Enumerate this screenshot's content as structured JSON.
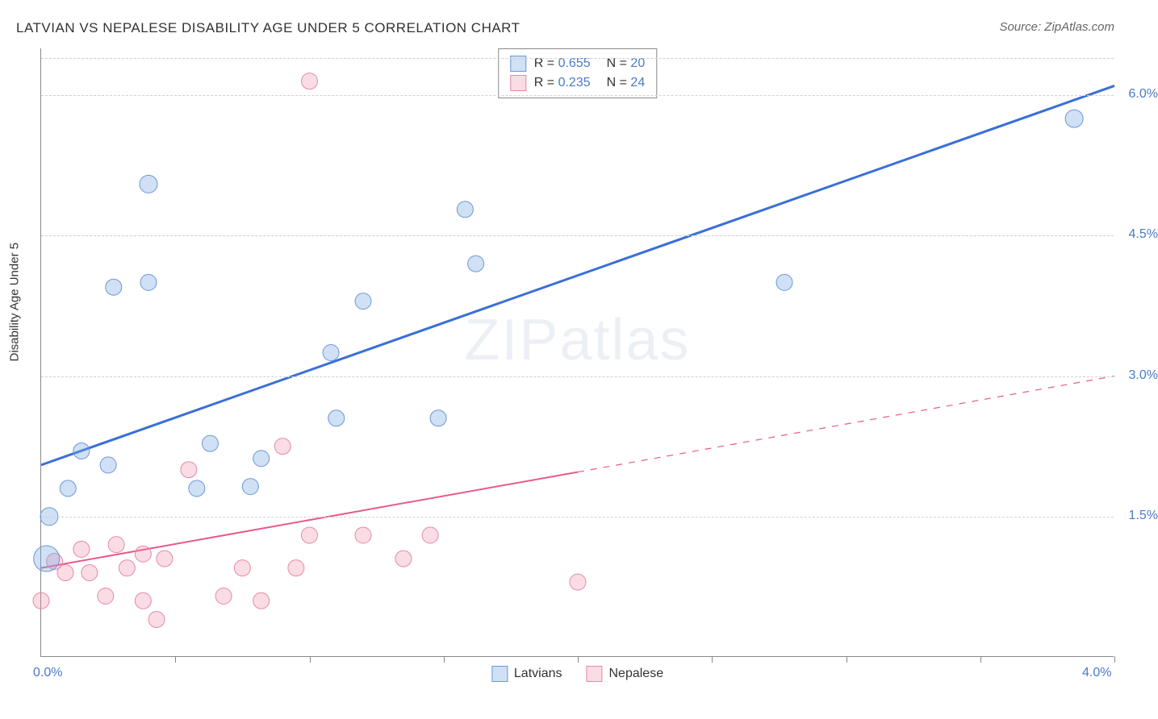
{
  "title": "LATVIAN VS NEPALESE DISABILITY AGE UNDER 5 CORRELATION CHART",
  "source": "Source: ZipAtlas.com",
  "y_axis_label": "Disability Age Under 5",
  "watermark": {
    "zip": "ZIP",
    "atlas": "atlas"
  },
  "chart": {
    "type": "scatter",
    "xlim": [
      0,
      4.0
    ],
    "ylim": [
      0,
      6.5
    ],
    "x_ticks": [
      0.5,
      1.0,
      1.5,
      2.0,
      2.5,
      3.0,
      3.5,
      4.0
    ],
    "x_tick_labels": [
      {
        "value": 0.0,
        "label": "0.0%"
      },
      {
        "value": 4.0,
        "label": "4.0%"
      }
    ],
    "y_gridlines": [
      1.5,
      3.0,
      4.5,
      6.0
    ],
    "y_tick_labels": [
      {
        "value": 1.5,
        "label": "1.5%"
      },
      {
        "value": 3.0,
        "label": "3.0%"
      },
      {
        "value": 4.5,
        "label": "4.5%"
      },
      {
        "value": 6.0,
        "label": "6.0%"
      }
    ],
    "top_gridline": 6.4,
    "background_color": "#ffffff",
    "grid_color": "#d0d0d0",
    "axis_color": "#888888",
    "text_color": "#333333",
    "tick_label_color": "#4a7ac7"
  },
  "series": {
    "latvians": {
      "label": "Latvians",
      "R": "0.655",
      "N": "20",
      "fill": "rgba(120,165,225,0.35)",
      "stroke": "#6b98d6",
      "line_color": "#3a6fd8",
      "line_width": 3,
      "marker_radius": 10,
      "trend": {
        "x1": 0.0,
        "y1": 2.05,
        "x2": 4.0,
        "y2": 6.1,
        "solid_end_x": 4.0
      },
      "points": [
        {
          "x": 0.02,
          "y": 1.05,
          "r": 16
        },
        {
          "x": 0.03,
          "y": 1.5,
          "r": 11
        },
        {
          "x": 0.1,
          "y": 1.8,
          "r": 10
        },
        {
          "x": 0.15,
          "y": 2.2,
          "r": 10
        },
        {
          "x": 0.25,
          "y": 2.05,
          "r": 10
        },
        {
          "x": 0.27,
          "y": 3.95,
          "r": 10
        },
        {
          "x": 0.4,
          "y": 5.05,
          "r": 11
        },
        {
          "x": 0.4,
          "y": 4.0,
          "r": 10
        },
        {
          "x": 0.58,
          "y": 1.8,
          "r": 10
        },
        {
          "x": 0.63,
          "y": 2.28,
          "r": 10
        },
        {
          "x": 0.78,
          "y": 1.82,
          "r": 10
        },
        {
          "x": 0.82,
          "y": 2.12,
          "r": 10
        },
        {
          "x": 1.1,
          "y": 2.55,
          "r": 10
        },
        {
          "x": 1.08,
          "y": 3.25,
          "r": 10
        },
        {
          "x": 1.2,
          "y": 3.8,
          "r": 10
        },
        {
          "x": 1.48,
          "y": 2.55,
          "r": 10
        },
        {
          "x": 1.58,
          "y": 4.78,
          "r": 10
        },
        {
          "x": 1.62,
          "y": 4.2,
          "r": 10
        },
        {
          "x": 2.77,
          "y": 4.0,
          "r": 10
        },
        {
          "x": 3.85,
          "y": 5.75,
          "r": 11
        }
      ]
    },
    "nepalese": {
      "label": "Nepalese",
      "R": "0.235",
      "N": "24",
      "fill": "rgba(240,140,170,0.30)",
      "stroke": "#e38aa5",
      "line_color": "#e85a8a",
      "line_width": 2,
      "marker_radius": 10,
      "trend": {
        "x1": 0.0,
        "y1": 0.95,
        "x2": 4.0,
        "y2": 3.0,
        "solid_end_x": 2.0
      },
      "points": [
        {
          "x": 0.0,
          "y": 0.6,
          "r": 10
        },
        {
          "x": 0.05,
          "y": 1.02,
          "r": 10
        },
        {
          "x": 0.09,
          "y": 0.9,
          "r": 10
        },
        {
          "x": 0.15,
          "y": 1.15,
          "r": 10
        },
        {
          "x": 0.18,
          "y": 0.9,
          "r": 10
        },
        {
          "x": 0.24,
          "y": 0.65,
          "r": 10
        },
        {
          "x": 0.28,
          "y": 1.2,
          "r": 10
        },
        {
          "x": 0.32,
          "y": 0.95,
          "r": 10
        },
        {
          "x": 0.38,
          "y": 1.1,
          "r": 10
        },
        {
          "x": 0.38,
          "y": 0.6,
          "r": 10
        },
        {
          "x": 0.43,
          "y": 0.4,
          "r": 10
        },
        {
          "x": 0.46,
          "y": 1.05,
          "r": 10
        },
        {
          "x": 0.55,
          "y": 2.0,
          "r": 10
        },
        {
          "x": 0.68,
          "y": 0.65,
          "r": 10
        },
        {
          "x": 0.75,
          "y": 0.95,
          "r": 10
        },
        {
          "x": 0.82,
          "y": 0.6,
          "r": 10
        },
        {
          "x": 0.9,
          "y": 2.25,
          "r": 10
        },
        {
          "x": 0.95,
          "y": 0.95,
          "r": 10
        },
        {
          "x": 1.0,
          "y": 1.3,
          "r": 10
        },
        {
          "x": 1.0,
          "y": 6.15,
          "r": 10
        },
        {
          "x": 1.2,
          "y": 1.3,
          "r": 10
        },
        {
          "x": 1.35,
          "y": 1.05,
          "r": 10
        },
        {
          "x": 1.45,
          "y": 1.3,
          "r": 10
        },
        {
          "x": 2.0,
          "y": 0.8,
          "r": 10
        }
      ]
    }
  },
  "legend_top_prefix_R": "R =",
  "legend_top_prefix_N": "N ="
}
